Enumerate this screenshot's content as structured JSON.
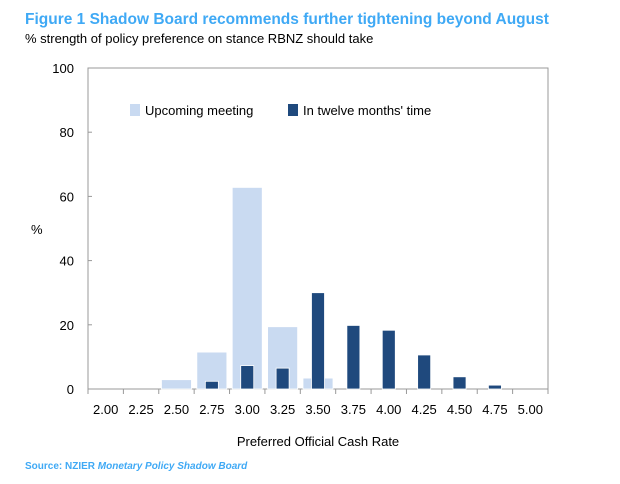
{
  "title": "Figure 1 Shadow Board recommends further tightening beyond August",
  "subtitle": "% strength of policy preference on stance RBNZ should take",
  "source": {
    "prefix": "Source: NZIER ",
    "name": "Monetary Policy Shadow Board"
  },
  "chart_data": {
    "type": "bar",
    "xlabel": "Preferred  Official Cash Rate",
    "ylabel": "%",
    "ylim": [
      0,
      100
    ],
    "yticks": [
      0,
      20,
      40,
      60,
      80,
      100
    ],
    "grid": false,
    "legend_position": "top",
    "categories": [
      "2.00",
      "2.25",
      "2.50",
      "2.75",
      "3.00",
      "3.25",
      "3.50",
      "3.75",
      "4.00",
      "4.25",
      "4.50",
      "4.75",
      "5.00"
    ],
    "series": [
      {
        "name": "Upcoming meeting",
        "color": "#c9daf1",
        "values": [
          0,
          0,
          2.9,
          11.5,
          62.8,
          19.4,
          3.4,
          0,
          0,
          0,
          0,
          0,
          0
        ]
      },
      {
        "name": "In twelve months' time",
        "color": "#1f497d",
        "values": [
          0,
          0,
          0,
          2.4,
          7.3,
          6.5,
          30,
          19.8,
          18.3,
          10.6,
          3.8,
          1.2,
          0
        ]
      }
    ]
  }
}
